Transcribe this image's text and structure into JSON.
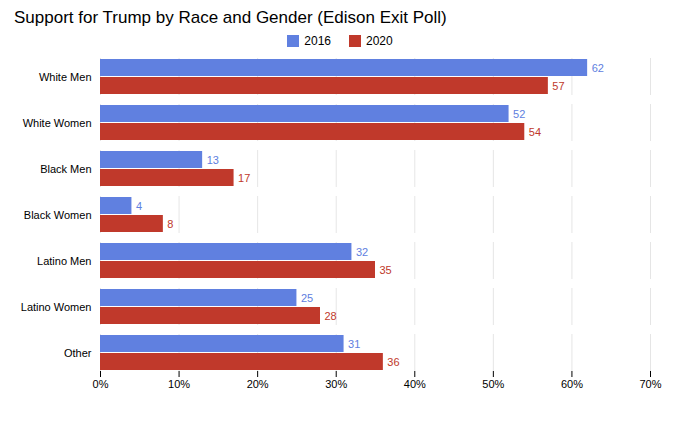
{
  "chart_data": {
    "type": "bar",
    "orientation": "horizontal",
    "title": "Support for Trump by Race and Gender (Edison Exit Poll)",
    "categories": [
      "White Men",
      "White Women",
      "Black Men",
      "Black Women",
      "Latino Men",
      "Latino Women",
      "Other"
    ],
    "series": [
      {
        "name": "2016",
        "color": "#6080E0",
        "values": [
          62,
          52,
          13,
          4,
          32,
          25,
          31
        ]
      },
      {
        "name": "2020",
        "color": "#C0392B",
        "values": [
          57,
          54,
          17,
          8,
          35,
          28,
          36
        ]
      }
    ],
    "xlim": [
      0,
      70
    ],
    "xticks": [
      {
        "value": 0,
        "label": "0%"
      },
      {
        "value": 10,
        "label": "10%"
      },
      {
        "value": 20,
        "label": "20%"
      },
      {
        "value": 30,
        "label": "30%"
      },
      {
        "value": 40,
        "label": "40%"
      },
      {
        "value": 50,
        "label": "50%"
      },
      {
        "value": 60,
        "label": "60%"
      },
      {
        "value": 70,
        "label": "70%"
      }
    ],
    "grid": true,
    "data_labels": true,
    "legend": "top"
  }
}
